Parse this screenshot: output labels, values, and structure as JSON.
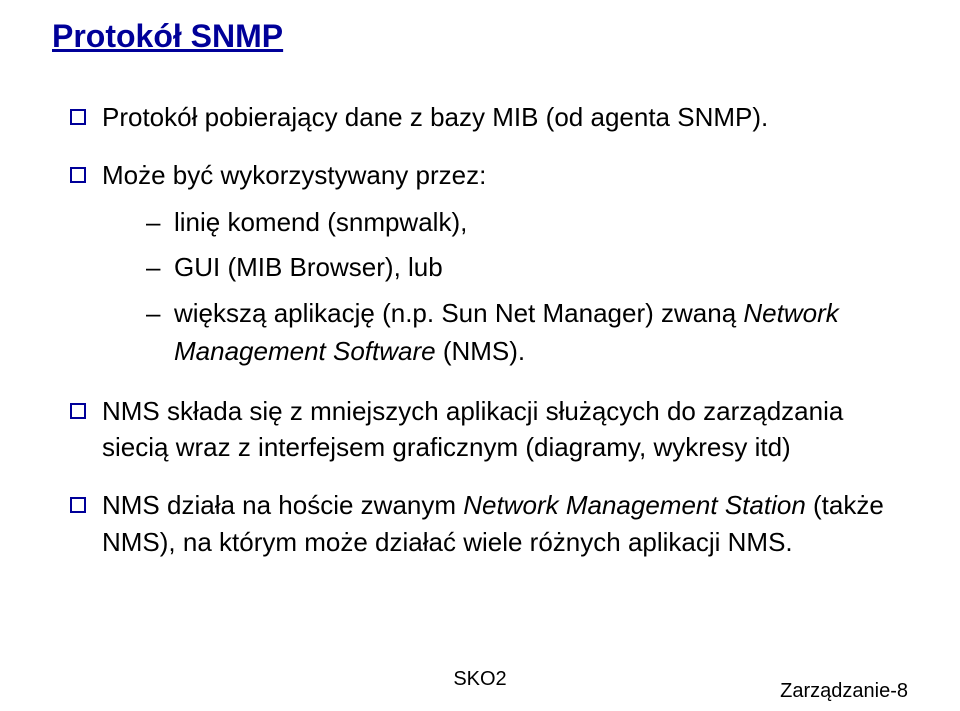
{
  "title": "Protokół SNMP",
  "bullets": {
    "item1": "Protokół pobierający dane z bazy MIB (od agenta SNMP).",
    "item2_intro": "Może być wykorzystywany przez:",
    "sub1": "linię komend (snmpwalk),",
    "sub2": "GUI (MIB Browser), lub",
    "sub3_pre": "większą aplikację (n.p. Sun Net Manager) zwaną ",
    "sub3_italic": "Network Management Software",
    "sub3_post": " (NMS).",
    "item3": "NMS składa się z mniejszych aplikacji służących do zarządzania siecią wraz z interfejsem graficznym (diagramy, wykresy itd)",
    "item4_pre": "NMS działa na hoście zwanym ",
    "item4_italic": "Network Management Station",
    "item4_post": " (także NMS), na którym może działać wiele różnych aplikacji NMS."
  },
  "footer": {
    "center": "SKO2",
    "right": "Zarządzanie-8"
  },
  "colors": {
    "title_color": "#000099",
    "text_color": "#000000",
    "bullet_border": "#000099",
    "background": "#ffffff"
  },
  "typography": {
    "title_fontsize": 32,
    "body_fontsize": 26,
    "footer_fontsize": 20,
    "font_family": "Comic Sans MS"
  }
}
